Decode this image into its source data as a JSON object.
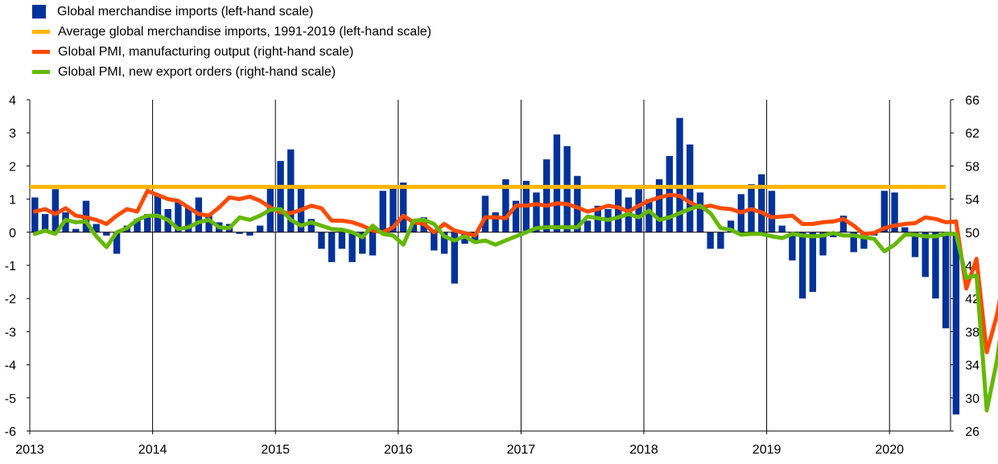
{
  "legend": [
    {
      "label": "Global merchandise imports (left-hand scale)",
      "color": "#003299",
      "kind": "bar"
    },
    {
      "label": "Average global merchandise imports, 1991-2019 (left-hand scale)",
      "color": "#FFB400",
      "kind": "line"
    },
    {
      "label": "Global PMI, manufacturing output (right-hand scale)",
      "color": "#FF4B00",
      "kind": "line"
    },
    {
      "label": "Global PMI, new export orders (right-hand scale)",
      "color": "#65B800",
      "kind": "line"
    }
  ],
  "chart_data": {
    "type": "bar",
    "x_start": "2013-01",
    "x_ticks": [
      "2013",
      "2014",
      "2015",
      "2016",
      "2017",
      "2018",
      "2019",
      "2020"
    ],
    "y_left": {
      "min": -6,
      "max": 4,
      "ticks": [
        -6,
        -5,
        -4,
        -3,
        -2,
        -1,
        0,
        1,
        2,
        3,
        4
      ]
    },
    "y_right": {
      "min": 26,
      "max": 66,
      "ticks": [
        26,
        30,
        34,
        38,
        42,
        46,
        50,
        54,
        58,
        62,
        66
      ]
    },
    "series": [
      {
        "name": "Global merchandise imports (left-hand scale)",
        "type": "bar",
        "axis": "left",
        "color": "#003299",
        "values": [
          1.05,
          0.55,
          1.3,
          0.6,
          0.1,
          0.95,
          0.25,
          -0.1,
          -0.65,
          0.2,
          0.4,
          0.55,
          1.1,
          0.7,
          0.9,
          0.75,
          1.05,
          0.55,
          0.3,
          0.25,
          -0.05,
          -0.1,
          0.2,
          1.35,
          2.15,
          2.5,
          1.35,
          0.4,
          -0.5,
          -0.9,
          -0.5,
          -0.9,
          -0.65,
          -0.7,
          1.25,
          1.35,
          1.5,
          0.3,
          0.45,
          -0.55,
          -0.65,
          -1.55,
          -0.35,
          -0.3,
          1.1,
          0.6,
          1.6,
          0.95,
          1.55,
          1.2,
          2.2,
          2.95,
          2.6,
          1.7,
          0.35,
          0.8,
          0.7,
          1.3,
          1.05,
          1.3,
          1.0,
          1.6,
          2.3,
          3.45,
          2.65,
          1.2,
          -0.5,
          -0.5,
          0.35,
          1.15,
          1.45,
          1.75,
          1.25,
          0.2,
          -0.85,
          -2.0,
          -1.8,
          -0.7,
          -0.15,
          0.5,
          -0.6,
          -0.5,
          -0.1,
          1.25,
          1.2,
          0.15,
          -0.75,
          -1.35,
          -2.0,
          -2.9,
          -5.5
        ],
        "unit_note": "monthly values from 2013-01"
      },
      {
        "name": "Average global merchandise imports, 1991-2019 (left-hand scale)",
        "type": "line",
        "axis": "left",
        "color": "#FFB400",
        "values": [
          1.37
        ]
      },
      {
        "name": "Global PMI, manufacturing output (right-hand scale)",
        "type": "line",
        "axis": "right",
        "color": "#FF4B00",
        "values": [
          52.5,
          52.8,
          52.2,
          52.9,
          52.0,
          51.8,
          51.5,
          51.0,
          52.0,
          52.8,
          52.5,
          55.0,
          54.5,
          54.0,
          53.8,
          53.0,
          52.2,
          52.0,
          53.0,
          54.2,
          54.0,
          54.3,
          53.8,
          53.0,
          52.4,
          52.3,
          52.7,
          53.2,
          52.9,
          51.4,
          51.4,
          51.2,
          50.8,
          50.2,
          50.0,
          50.6,
          52.0,
          51.2,
          51.0,
          50.0,
          51.0,
          50.2,
          49.9,
          49.6,
          51.8,
          51.8,
          51.7,
          53.2,
          53.2,
          53.4,
          53.2,
          53.5,
          53.4,
          53.0,
          52.5,
          52.8,
          53.2,
          53.0,
          52.5,
          53.2,
          53.8,
          54.2,
          54.5,
          54.4,
          53.6,
          53.0,
          53.2,
          52.9,
          52.8,
          52.4,
          52.8,
          52.4,
          51.8,
          51.9,
          52.0,
          51.0,
          51.0,
          51.2,
          51.3,
          51.6,
          50.8,
          49.8,
          49.9,
          50.5,
          50.8,
          51.0,
          51.1,
          51.8,
          51.6,
          51.2,
          51.3,
          43.2,
          46.8,
          35.5,
          40.0,
          46.5
        ]
      },
      {
        "name": "Global PMI, new export orders (right-hand scale)",
        "type": "line",
        "axis": "right",
        "color": "#65B800",
        "values": [
          49.8,
          50.2,
          49.8,
          51.5,
          51.2,
          51.3,
          49.5,
          48.2,
          50.0,
          50.5,
          51.5,
          52.0,
          52.0,
          51.5,
          50.4,
          50.6,
          51.2,
          51.5,
          50.6,
          50.5,
          51.8,
          51.5,
          52.0,
          52.7,
          52.8,
          51.5,
          50.8,
          51.2,
          50.8,
          50.4,
          50.3,
          50.0,
          49.4,
          50.8,
          49.8,
          49.6,
          48.5,
          51.4,
          51.5,
          51.0,
          49.5,
          49.0,
          49.5,
          48.8,
          49.0,
          48.5,
          49.0,
          49.5,
          50.0,
          50.5,
          50.6,
          50.6,
          50.6,
          50.6,
          51.9,
          51.7,
          51.5,
          51.8,
          52.2,
          51.8,
          52.6,
          51.5,
          51.8,
          52.3,
          52.8,
          53.2,
          52.3,
          50.5,
          50.3,
          49.7,
          49.8,
          49.8,
          49.5,
          49.3,
          49.8,
          49.6,
          49.5,
          49.6,
          49.9,
          49.6,
          49.6,
          49.4,
          49.2,
          47.7,
          48.5,
          49.7,
          49.7,
          49.5,
          49.5,
          49.8,
          49.8,
          44.5,
          44.8,
          28.5,
          34.5,
          43.3
        ]
      }
    ]
  }
}
